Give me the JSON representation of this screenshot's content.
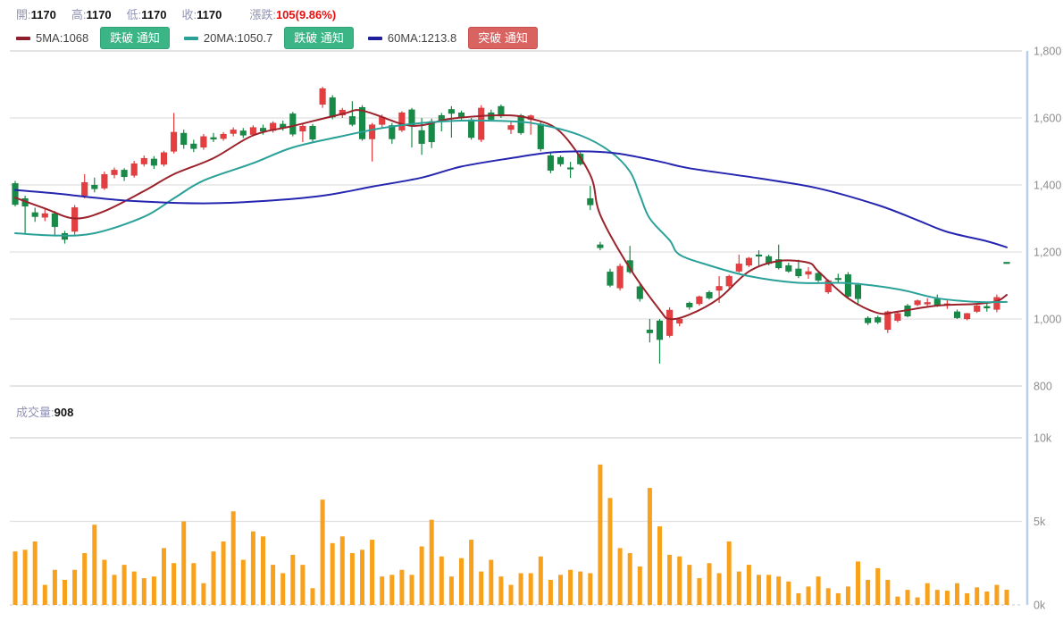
{
  "header": {
    "open_label": "開:",
    "open": "1170",
    "high_label": "高:",
    "high": "1170",
    "low_label": "低:",
    "low": "1170",
    "close_label": "收:",
    "close": "1170",
    "change_label": "漲跌:",
    "change": "105(9.86%)"
  },
  "legend": {
    "items": [
      {
        "label": "5MA:1068",
        "dash_color": "#8f1f2c",
        "button": "跌破 通知",
        "button_style": "green"
      },
      {
        "label": "20MA:1050.7",
        "dash_color": "#2aa198",
        "button": "跌破 通知",
        "button_style": "green"
      },
      {
        "label": "60MA:1213.8",
        "dash_color": "#1f1f9e",
        "button": "突破 通知",
        "button_style": "red"
      }
    ]
  },
  "volume_header": {
    "label": "成交量:",
    "value": "908"
  },
  "chart_data": {
    "type": "candlestick+volume",
    "title": "",
    "legend_position": "top",
    "grid": true,
    "price_axis": {
      "range": [
        800,
        1800
      ],
      "ticks": [
        {
          "value": 1800,
          "label": "1,800"
        },
        {
          "value": 1600,
          "label": "1,600"
        },
        {
          "value": 1400,
          "label": "1,400"
        },
        {
          "value": 1200,
          "label": "1,200"
        },
        {
          "value": 1000,
          "label": "1,000"
        },
        {
          "value": 800,
          "label": "800"
        }
      ]
    },
    "volume_axis": {
      "range": [
        0,
        10000
      ],
      "ticks": [
        {
          "value": 10000,
          "label": "10k"
        },
        {
          "value": 5000,
          "label": "5k"
        },
        {
          "value": 0,
          "label": "0k"
        }
      ]
    },
    "candles": [
      [
        1405,
        1412,
        1336,
        1341
      ],
      [
        1360,
        1368,
        1253,
        1336
      ],
      [
        1318,
        1332,
        1290,
        1305
      ],
      [
        1303,
        1328,
        1292,
        1315
      ],
      [
        1315,
        1322,
        1250,
        1275
      ],
      [
        1256,
        1263,
        1225,
        1237
      ],
      [
        1261,
        1340,
        1248,
        1333
      ],
      [
        1368,
        1432,
        1360,
        1408
      ],
      [
        1400,
        1422,
        1378,
        1388
      ],
      [
        1390,
        1440,
        1385,
        1432
      ],
      [
        1430,
        1452,
        1420,
        1445
      ],
      [
        1445,
        1450,
        1412,
        1424
      ],
      [
        1428,
        1472,
        1422,
        1464
      ],
      [
        1462,
        1488,
        1455,
        1480
      ],
      [
        1478,
        1486,
        1448,
        1458
      ],
      [
        1461,
        1502,
        1455,
        1497
      ],
      [
        1500,
        1615,
        1494,
        1558
      ],
      [
        1555,
        1565,
        1508,
        1520
      ],
      [
        1523,
        1535,
        1498,
        1508
      ],
      [
        1512,
        1552,
        1505,
        1545
      ],
      [
        1542,
        1555,
        1528,
        1536
      ],
      [
        1538,
        1558,
        1532,
        1552
      ],
      [
        1553,
        1572,
        1545,
        1565
      ],
      [
        1562,
        1570,
        1540,
        1548
      ],
      [
        1550,
        1578,
        1545,
        1572
      ],
      [
        1570,
        1580,
        1550,
        1560
      ],
      [
        1562,
        1590,
        1556,
        1585
      ],
      [
        1582,
        1592,
        1562,
        1570
      ],
      [
        1613,
        1618,
        1545,
        1551
      ],
      [
        1560,
        1582,
        1528,
        1576
      ],
      [
        1576,
        1582,
        1530,
        1536
      ],
      [
        1640,
        1693,
        1630,
        1688
      ],
      [
        1661,
        1668,
        1596,
        1602
      ],
      [
        1608,
        1630,
        1600,
        1624
      ],
      [
        1605,
        1650,
        1575,
        1580
      ],
      [
        1632,
        1638,
        1532,
        1537
      ],
      [
        1537,
        1585,
        1470,
        1580
      ],
      [
        1580,
        1610,
        1572,
        1603
      ],
      [
        1578,
        1585,
        1523,
        1537
      ],
      [
        1563,
        1620,
        1558,
        1616
      ],
      [
        1625,
        1630,
        1512,
        1578
      ],
      [
        1563,
        1600,
        1490,
        1523
      ],
      [
        1590,
        1598,
        1510,
        1528
      ],
      [
        1608,
        1615,
        1560,
        1589
      ],
      [
        1626,
        1635,
        1541,
        1613
      ],
      [
        1616,
        1622,
        1595,
        1600
      ],
      [
        1595,
        1600,
        1535,
        1541
      ],
      [
        1535,
        1638,
        1528,
        1630
      ],
      [
        1616,
        1625,
        1590,
        1595
      ],
      [
        1635,
        1640,
        1600,
        1605
      ],
      [
        1565,
        1592,
        1552,
        1578
      ],
      [
        1608,
        1612,
        1550,
        1555
      ],
      [
        1595,
        1610,
        1550,
        1607
      ],
      [
        1582,
        1588,
        1500,
        1507
      ],
      [
        1488,
        1495,
        1435,
        1443
      ],
      [
        1483,
        1488,
        1455,
        1462
      ],
      [
        1452,
        1469,
        1421,
        1448
      ],
      [
        1493,
        1498,
        1458,
        1462
      ],
      [
        1360,
        1397,
        1325,
        1340
      ],
      [
        1222,
        1230,
        1205,
        1212
      ],
      [
        1141,
        1150,
        1095,
        1100
      ],
      [
        1092,
        1165,
        1085,
        1158
      ],
      [
        1175,
        1218,
        1135,
        1140
      ],
      [
        1097,
        1105,
        1052,
        1060
      ],
      [
        968,
        1000,
        930,
        958
      ],
      [
        995,
        1000,
        867,
        938
      ],
      [
        950,
        1035,
        945,
        1027
      ],
      [
        987,
        1005,
        978,
        1000
      ],
      [
        1048,
        1052,
        1028,
        1035
      ],
      [
        1045,
        1070,
        1040,
        1067
      ],
      [
        1080,
        1085,
        1058,
        1062
      ],
      [
        1085,
        1128,
        1048,
        1098
      ],
      [
        1098,
        1132,
        1092,
        1128
      ],
      [
        1142,
        1192,
        1138,
        1165
      ],
      [
        1160,
        1185,
        1155,
        1182
      ],
      [
        1192,
        1205,
        1160,
        1187
      ],
      [
        1187,
        1192,
        1160,
        1165
      ],
      [
        1178,
        1222,
        1148,
        1152
      ],
      [
        1160,
        1168,
        1138,
        1142
      ],
      [
        1150,
        1177,
        1122,
        1128
      ],
      [
        1133,
        1155,
        1120,
        1142
      ],
      [
        1137,
        1142,
        1110,
        1115
      ],
      [
        1080,
        1118,
        1075,
        1115
      ],
      [
        1122,
        1135,
        1108,
        1118
      ],
      [
        1133,
        1140,
        1062,
        1067
      ],
      [
        1102,
        1108,
        1040,
        1060
      ],
      [
        1003,
        1008,
        982,
        988
      ],
      [
        1005,
        1010,
        985,
        990
      ],
      [
        968,
        1025,
        958,
        1022
      ],
      [
        995,
        1020,
        990,
        1017
      ],
      [
        1040,
        1045,
        1005,
        1008
      ],
      [
        1042,
        1058,
        1038,
        1055
      ],
      [
        1044,
        1062,
        1035,
        1050
      ],
      [
        1060,
        1073,
        1036,
        1040
      ],
      [
        1040,
        1056,
        1030,
        1046
      ],
      [
        1022,
        1028,
        1000,
        1003
      ],
      [
        1000,
        1018,
        996,
        1017
      ],
      [
        1022,
        1042,
        1018,
        1040
      ],
      [
        1038,
        1048,
        1022,
        1032
      ],
      [
        1028,
        1073,
        1020,
        1065
      ],
      [
        1170,
        1170,
        1170,
        1170
      ]
    ],
    "volumes": [
      3200,
      3300,
      3800,
      1200,
      2100,
      1500,
      2100,
      3100,
      4800,
      2700,
      1800,
      2400,
      2000,
      1600,
      1700,
      3400,
      2500,
      5000,
      2500,
      1300,
      3200,
      3800,
      5600,
      2700,
      4400,
      4100,
      2400,
      1900,
      3000,
      2400,
      1000,
      6300,
      3700,
      4100,
      3100,
      3300,
      3900,
      1700,
      1800,
      2100,
      1800,
      3500,
      5100,
      2900,
      1700,
      2800,
      3900,
      2000,
      2700,
      1700,
      1200,
      1900,
      1900,
      2900,
      1500,
      1800,
      2100,
      2000,
      1900,
      8400,
      6400,
      3400,
      3100,
      2300,
      7000,
      4700,
      3000,
      2900,
      2400,
      1600,
      2500,
      1900,
      3800,
      2000,
      2400,
      1800,
      1800,
      1700,
      1400,
      700,
      1100,
      1700,
      1000,
      700,
      1100,
      2600,
      1500,
      2200,
      1500,
      500,
      900,
      450,
      1300,
      900,
      850,
      1300,
      700,
      1050,
      800,
      1200,
      908
    ],
    "ma_lines": [
      {
        "name": "5MA",
        "color": "#9b222b",
        "points": [
          [
            0,
            1362
          ],
          [
            3,
            1330
          ],
          [
            6,
            1300
          ],
          [
            9,
            1322
          ],
          [
            13,
            1382
          ],
          [
            16,
            1432
          ],
          [
            20,
            1480
          ],
          [
            24,
            1548
          ],
          [
            28,
            1576
          ],
          [
            33,
            1612
          ],
          [
            35,
            1622
          ],
          [
            39,
            1582
          ],
          [
            41,
            1578
          ],
          [
            44,
            1598
          ],
          [
            49,
            1608
          ],
          [
            52,
            1598
          ],
          [
            55,
            1558
          ],
          [
            58,
            1430
          ],
          [
            59,
            1311
          ],
          [
            62,
            1151
          ],
          [
            65,
            1027
          ],
          [
            66,
            1000
          ],
          [
            68,
            1013
          ],
          [
            71,
            1062
          ],
          [
            74,
            1142
          ],
          [
            77,
            1173
          ],
          [
            80,
            1168
          ],
          [
            81,
            1142
          ],
          [
            84,
            1062
          ],
          [
            87,
            1018
          ],
          [
            89,
            1022
          ],
          [
            93,
            1040
          ],
          [
            97,
            1045
          ],
          [
            99,
            1053
          ],
          [
            100,
            1072
          ]
        ]
      },
      {
        "name": "20MA",
        "color": "#2aa198",
        "points": [
          [
            0,
            1256
          ],
          [
            4,
            1249
          ],
          [
            8,
            1256
          ],
          [
            13,
            1305
          ],
          [
            16,
            1360
          ],
          [
            19,
            1413
          ],
          [
            24,
            1465
          ],
          [
            28,
            1512
          ],
          [
            33,
            1546
          ],
          [
            37,
            1570
          ],
          [
            41,
            1585
          ],
          [
            45,
            1592
          ],
          [
            50,
            1590
          ],
          [
            53,
            1580
          ],
          [
            57,
            1548
          ],
          [
            60,
            1500
          ],
          [
            62,
            1440
          ],
          [
            63,
            1370
          ],
          [
            64,
            1300
          ],
          [
            66,
            1235
          ],
          [
            67,
            1192
          ],
          [
            70,
            1160
          ],
          [
            74,
            1128
          ],
          [
            79,
            1108
          ],
          [
            84,
            1107
          ],
          [
            89,
            1089
          ],
          [
            93,
            1062
          ],
          [
            97,
            1051
          ],
          [
            100,
            1051
          ]
        ]
      },
      {
        "name": "60MA",
        "color": "#2525b0",
        "points": [
          [
            0,
            1385
          ],
          [
            4,
            1375
          ],
          [
            8,
            1362
          ],
          [
            12,
            1352
          ],
          [
            19,
            1345
          ],
          [
            25,
            1352
          ],
          [
            31,
            1368
          ],
          [
            36,
            1395
          ],
          [
            41,
            1422
          ],
          [
            45,
            1455
          ],
          [
            50,
            1480
          ],
          [
            54,
            1497
          ],
          [
            58,
            1500
          ],
          [
            61,
            1493
          ],
          [
            65,
            1470
          ],
          [
            68,
            1450
          ],
          [
            75,
            1420
          ],
          [
            81,
            1390
          ],
          [
            87,
            1340
          ],
          [
            91,
            1295
          ],
          [
            94,
            1260
          ],
          [
            98,
            1232
          ],
          [
            100,
            1214
          ]
        ]
      }
    ],
    "colors": {
      "up": "#e53e41",
      "down": "#178a47",
      "volume": "#f7a11d",
      "grid": "#e0e0e0",
      "grid_strong": "#d4d4d4",
      "axis_line": "#b9cfe9",
      "tick_text": "#8e8e8e"
    }
  }
}
